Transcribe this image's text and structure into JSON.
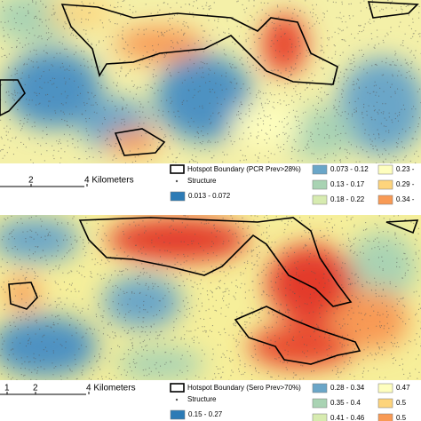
{
  "maps": [
    {
      "scale_labels": [
        "2",
        "4 Kilometers"
      ],
      "legend": {
        "hotspot": "Hotspot Boundary (PCR Prev>28%)",
        "structure": "Structure",
        "classes": [
          {
            "label": "0.013 - 0.072",
            "color": "#2c7bb6"
          },
          {
            "label": "0.073 - 0.12",
            "color": "#6aa6c8"
          },
          {
            "label": "0.13 - 0.17",
            "color": "#a9d3b3"
          },
          {
            "label": "0.18 - 0.22",
            "color": "#d7ebb0"
          },
          {
            "label": "0.23 -",
            "color": "#fefebe"
          },
          {
            "label": "0.29 -",
            "color": "#fdd47c"
          },
          {
            "label": "0.34 -",
            "color": "#f89a55"
          }
        ]
      }
    },
    {
      "scale_labels": [
        "1",
        "2",
        "4 Kilometers"
      ],
      "legend": {
        "hotspot": "Hotspot Boundary (Sero Prev>70%)",
        "structure": "Structure",
        "classes": [
          {
            "label": "0.15 - 0.27",
            "color": "#2c7bb6"
          },
          {
            "label": "0.28 - 0.34",
            "color": "#6aa6c8"
          },
          {
            "label": "0.35 - 0.4",
            "color": "#a9d3b3"
          },
          {
            "label": "0.41 - 0.46",
            "color": "#d7ebb0"
          },
          {
            "label": "0.47",
            "color": "#fefebe"
          },
          {
            "label": "0.5",
            "color": "#fdd47c"
          },
          {
            "label": "0.5",
            "color": "#f89a55"
          }
        ]
      }
    }
  ]
}
